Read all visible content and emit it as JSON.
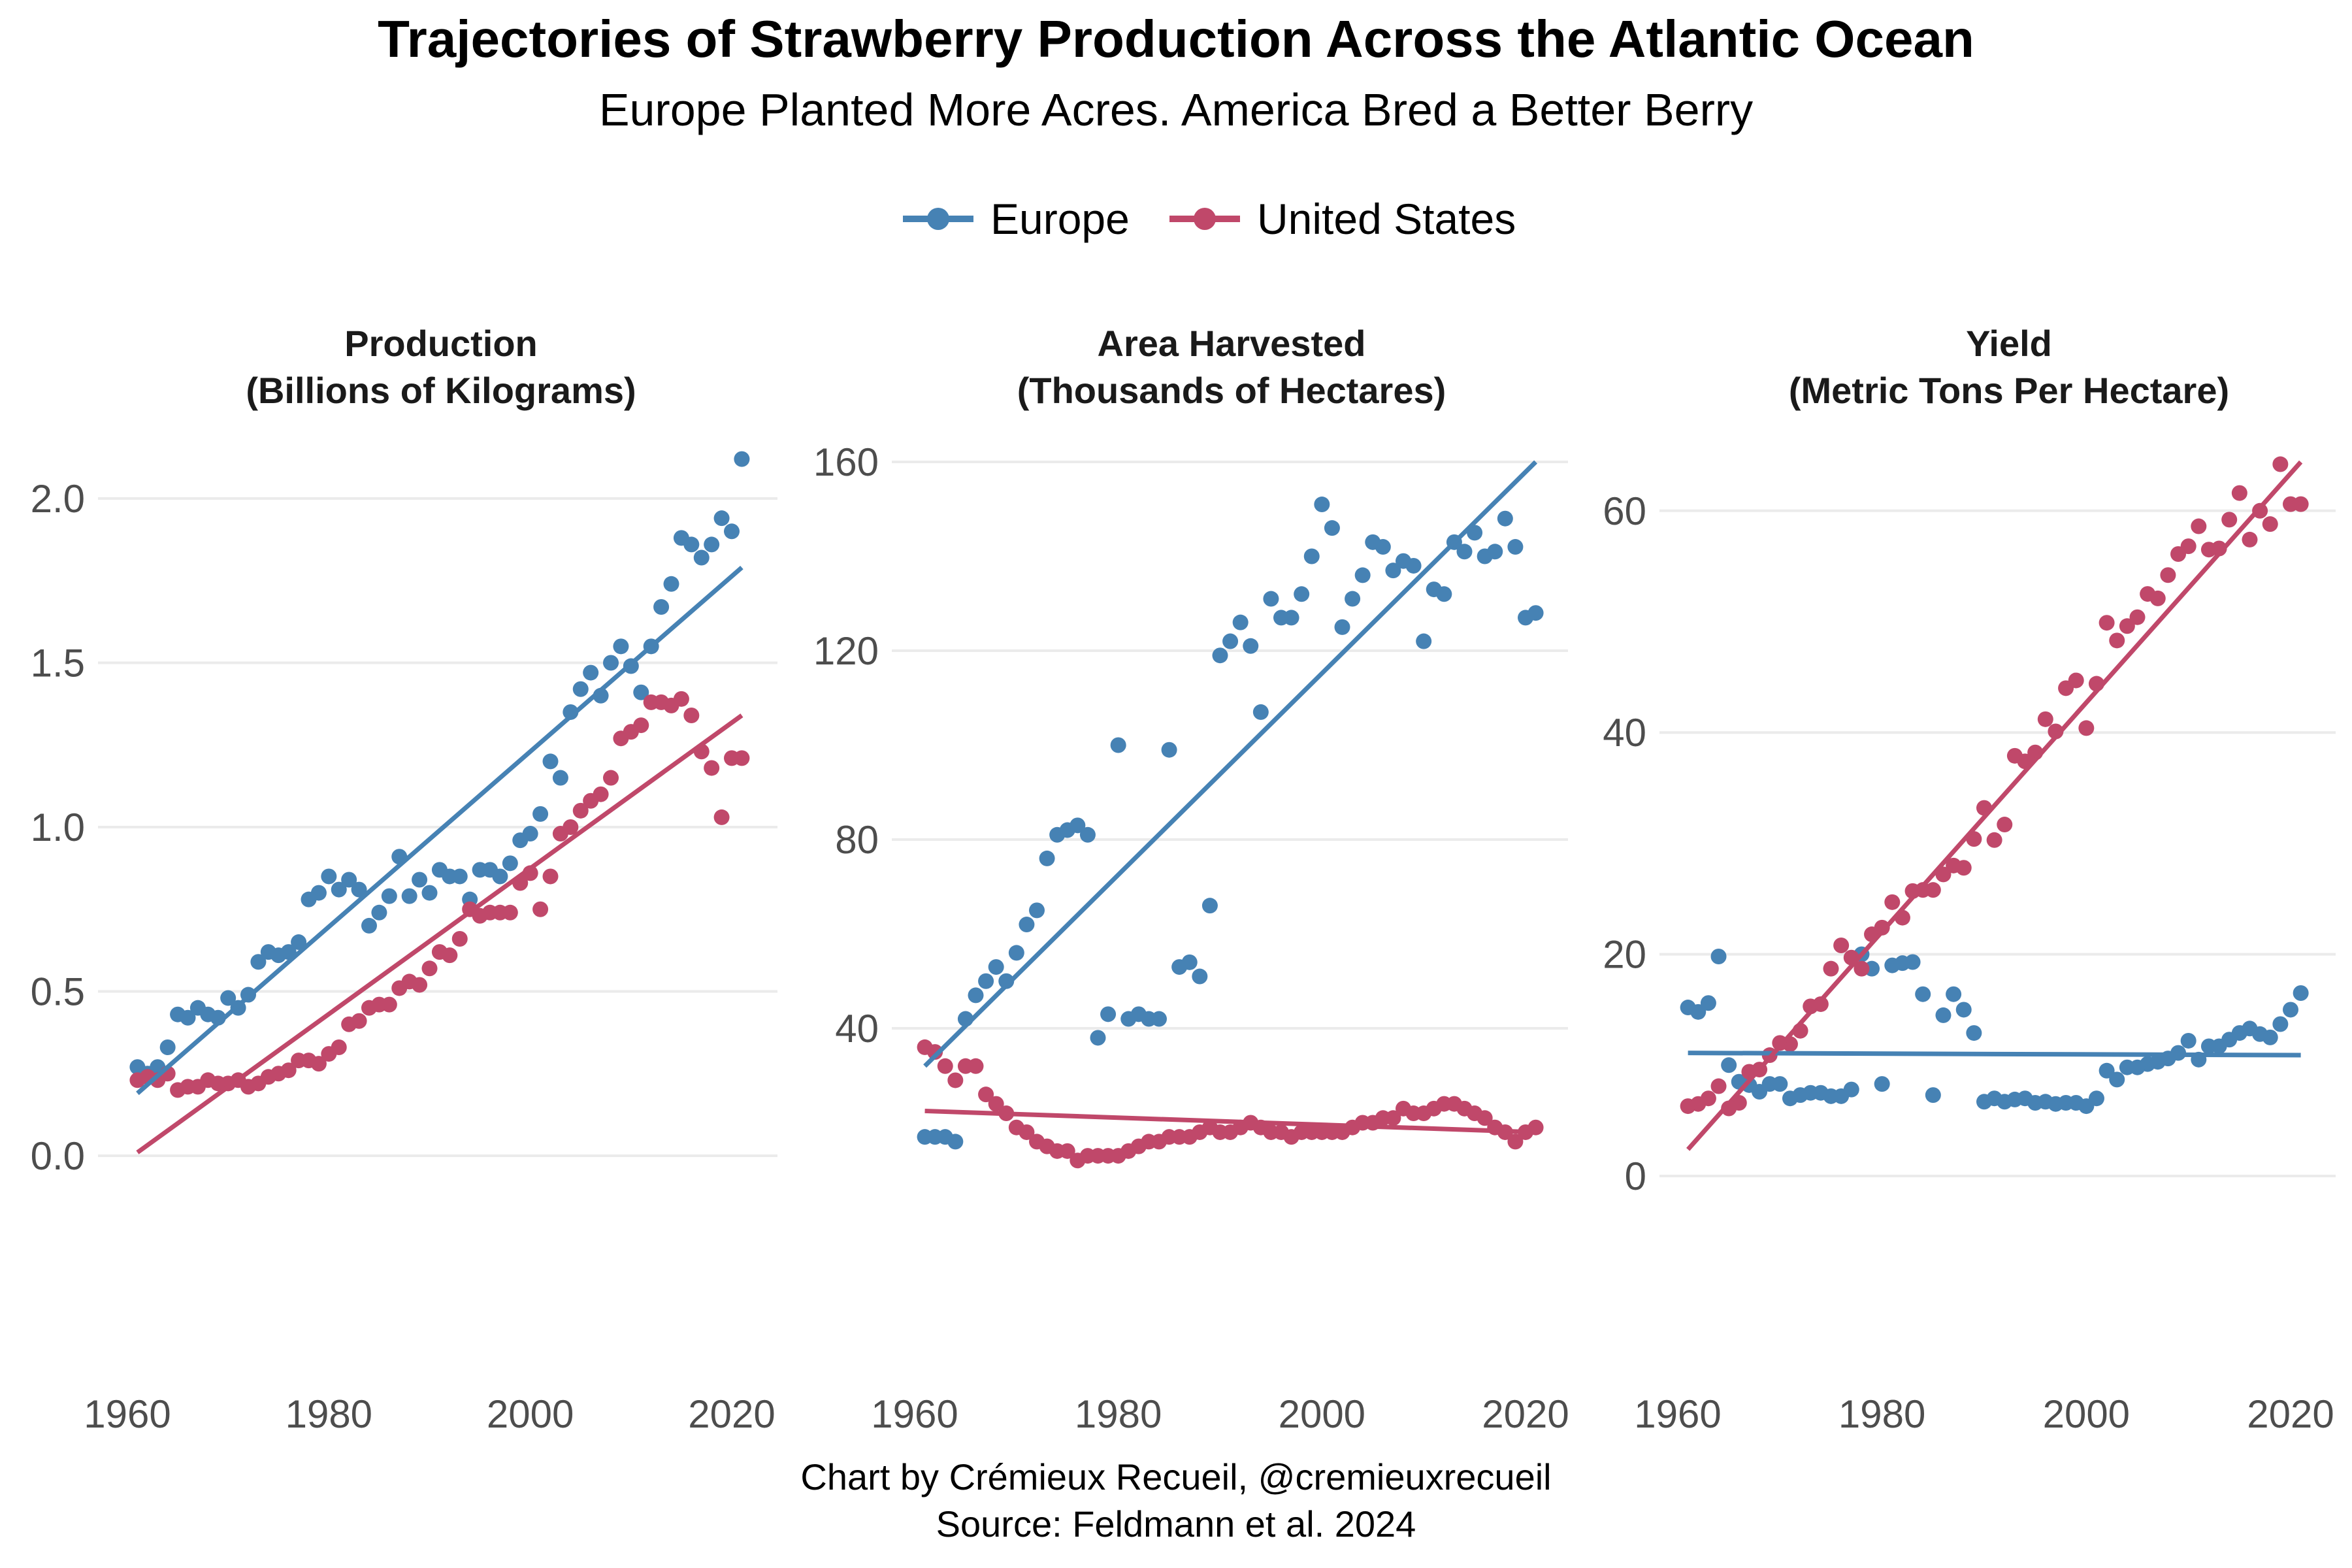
{
  "title": "Trajectories of Strawberry Production Across the Atlantic Ocean",
  "subtitle": "Europe Planted More Acres. America Bred a Better Berry",
  "legend": [
    {
      "label": "Europe",
      "color": "#4682B4"
    },
    {
      "label": "United States",
      "color": "#C0486A"
    }
  ],
  "caption": {
    "line1": "Chart by Crémieux Recueil, @cremieuxrecueil",
    "line2": "Source: Feldmann et al. 2024"
  },
  "chart_data": [
    {
      "type": "scatter",
      "title_line1": "Production",
      "title_line2": "(Billions of Kilograms)",
      "x_start": 1961,
      "xlim": [
        1958,
        2022
      ],
      "ylim": [
        -0.05,
        2.2
      ],
      "xticks": [
        1960,
        1980,
        2000,
        2020
      ],
      "yticks": [
        0.0,
        0.5,
        1.0,
        1.5,
        2.0
      ],
      "ytick_labels": [
        "0.0",
        "0.5",
        "1.0",
        "1.5",
        "2.0"
      ],
      "series": [
        {
          "name": "Europe",
          "values": [
            0.27,
            0.25,
            0.27,
            0.33,
            0.43,
            0.42,
            0.45,
            0.43,
            0.42,
            0.48,
            0.45,
            0.49,
            0.59,
            0.62,
            0.61,
            0.62,
            0.65,
            0.78,
            0.8,
            0.85,
            0.81,
            0.84,
            0.81,
            0.7,
            0.74,
            0.79,
            0.91,
            0.79,
            0.84,
            0.8,
            0.87,
            0.85,
            0.85,
            0.78,
            0.87,
            0.87,
            0.85,
            0.89,
            0.96,
            0.98,
            1.04,
            1.2,
            1.15,
            1.35,
            1.42,
            1.47,
            1.4,
            1.5,
            1.55,
            1.49,
            1.41,
            1.55,
            1.67,
            1.74,
            1.88,
            1.86,
            1.82,
            1.86,
            1.94,
            1.9,
            2.12
          ],
          "trend": [
            0.19,
            1.79
          ]
        },
        {
          "name": "United States",
          "values": [
            0.23,
            0.24,
            0.23,
            0.25,
            0.2,
            0.21,
            0.21,
            0.23,
            0.22,
            0.22,
            0.23,
            0.21,
            0.22,
            0.24,
            0.25,
            0.26,
            0.29,
            0.29,
            0.28,
            0.31,
            0.33,
            0.4,
            0.41,
            0.45,
            0.46,
            0.46,
            0.51,
            0.53,
            0.52,
            0.57,
            0.62,
            0.61,
            0.66,
            0.75,
            0.73,
            0.74,
            0.74,
            0.74,
            0.83,
            0.86,
            0.75,
            0.85,
            0.98,
            1.0,
            1.05,
            1.08,
            1.1,
            1.15,
            1.27,
            1.29,
            1.31,
            1.38,
            1.38,
            1.37,
            1.39,
            1.34,
            1.23,
            1.18,
            1.03,
            1.21,
            1.21
          ],
          "trend": [
            0.01,
            1.34
          ]
        }
      ]
    },
    {
      "type": "scatter",
      "title_line1": "Area Harvested",
      "title_line2": "(Thousands of Hectares)",
      "x_start": 1961,
      "xlim": [
        1958,
        2022
      ],
      "ylim": [
        10,
        165
      ],
      "xticks": [
        1960,
        1980,
        2000,
        2020
      ],
      "yticks": [
        40,
        80,
        120,
        160
      ],
      "ytick_labels": [
        "40",
        "80",
        "120",
        "160"
      ],
      "series": [
        {
          "name": "Europe",
          "values": [
            17,
            17,
            17,
            16,
            42,
            47,
            50,
            53,
            50,
            56,
            62,
            65,
            76,
            81,
            82,
            83,
            81,
            38,
            43,
            100,
            42,
            43,
            42,
            42,
            99,
            53,
            54,
            51,
            66,
            119,
            122,
            126,
            121,
            107,
            131,
            127,
            127,
            132,
            140,
            151,
            146,
            125,
            131,
            136,
            143,
            142,
            137,
            139,
            138,
            122,
            133,
            132,
            143,
            141,
            145,
            140,
            141,
            148,
            142,
            127,
            128
          ],
          "trend": [
            32,
            160
          ]
        },
        {
          "name": "United States",
          "values": [
            36,
            35,
            32,
            29,
            32,
            32,
            26,
            24,
            22,
            19,
            18,
            16,
            15,
            14,
            14,
            12,
            13,
            13,
            13,
            13,
            14,
            15,
            16,
            16,
            17,
            17,
            17,
            18,
            19,
            18,
            18,
            19,
            20,
            19,
            18,
            18,
            17,
            18,
            18,
            18,
            18,
            18,
            19,
            20,
            20,
            21,
            21,
            23,
            22,
            22,
            23,
            24,
            24,
            23,
            22,
            21,
            19,
            18,
            16,
            18,
            19
          ],
          "trend": [
            22.5,
            18
          ]
        }
      ]
    },
    {
      "type": "scatter",
      "title_line1": "Yield",
      "title_line2": "(Metric Tons Per Hectare)",
      "x_start": 1961,
      "xlim": [
        1958,
        2022
      ],
      "ylim": [
        -1,
        67
      ],
      "xticks": [
        1960,
        1980,
        2000,
        2020
      ],
      "yticks": [
        0,
        20,
        40,
        60
      ],
      "ytick_labels": [
        "0",
        "20",
        "40",
        "60"
      ],
      "series": [
        {
          "name": "Europe",
          "values": [
            15.2,
            14.8,
            15.6,
            19.8,
            10.0,
            8.5,
            8.2,
            7.6,
            8.3,
            8.3,
            7.0,
            7.3,
            7.5,
            7.5,
            7.2,
            7.2,
            7.8,
            20.0,
            18.7,
            8.3,
            19.0,
            19.2,
            19.3,
            16.4,
            7.3,
            14.5,
            16.4,
            15.0,
            12.9,
            6.7,
            7.0,
            6.7,
            6.9,
            7.0,
            6.6,
            6.7,
            6.5,
            6.6,
            6.6,
            6.3,
            7.0,
            9.5,
            8.7,
            9.8,
            9.8,
            10.1,
            10.3,
            10.6,
            11.1,
            12.2,
            10.5,
            11.7,
            11.7,
            12.3,
            12.9,
            13.3,
            12.8,
            12.5,
            13.7,
            15.0,
            16.5
          ],
          "trend": [
            11.1,
            10.9
          ]
        },
        {
          "name": "United States",
          "values": [
            6.3,
            6.5,
            7.0,
            8.1,
            6.1,
            6.6,
            9.4,
            9.6,
            10.9,
            12.0,
            11.9,
            13.1,
            15.3,
            15.5,
            18.7,
            20.8,
            19.7,
            18.7,
            21.8,
            22.4,
            24.7,
            23.3,
            25.7,
            25.8,
            25.8,
            27.2,
            28.0,
            27.8,
            30.4,
            33.2,
            30.3,
            31.7,
            37.9,
            37.4,
            38.2,
            41.2,
            40.1,
            44.0,
            44.7,
            40.4,
            44.4,
            49.9,
            48.3,
            49.6,
            50.4,
            52.5,
            52.1,
            54.2,
            56.1,
            56.8,
            58.6,
            56.5,
            56.6,
            59.2,
            61.6,
            57.4,
            60.0,
            58.8,
            64.2,
            60.6,
            60.6
          ],
          "trend": [
            2.4,
            64.4
          ]
        }
      ]
    }
  ]
}
